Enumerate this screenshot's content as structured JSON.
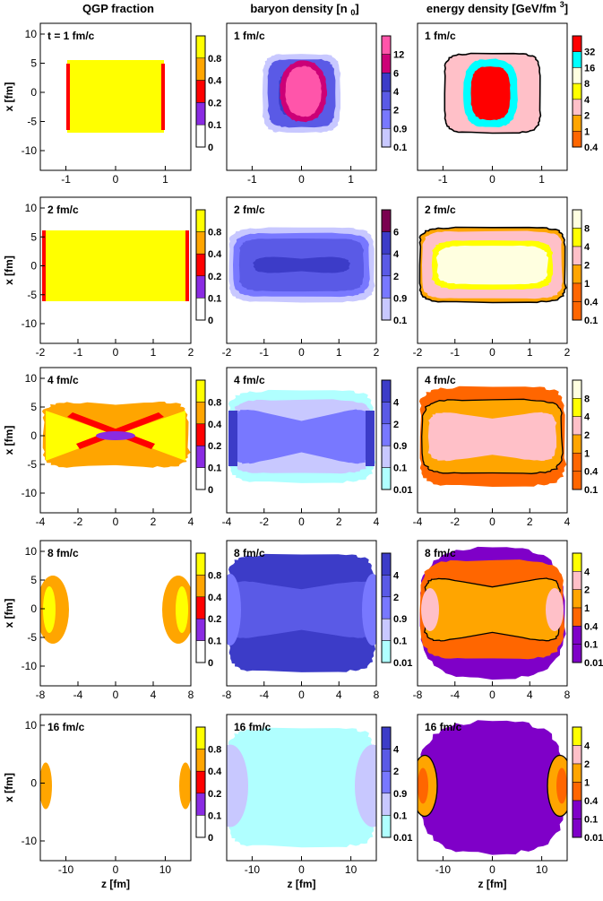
{
  "column_headers": [
    "QGP fraction",
    "baryon density [n0]",
    "energy density [GeV/fm3]"
  ],
  "column_header_sub": {
    "baryon": "0",
    "energy": "3"
  },
  "y_axis_label": "x [fm]",
  "x_axis_label": "z [fm]",
  "colors": {
    "qgp": [
      "#ffffff",
      "#8a2be2",
      "#ff0000",
      "#ffa500",
      "#ffff00"
    ],
    "baryon_warm": [
      "#c8c8ff",
      "#7878ff",
      "#3c3cc8",
      "#cc0077",
      "#ff55aa"
    ],
    "baryon_cold": [
      "#b0ffff",
      "#c8c8ff",
      "#7878ff",
      "#3c3cc8",
      "#3c3cc8"
    ],
    "energy": [
      "#7f00c8",
      "#ff6600",
      "#ffa500",
      "#ffc0c8",
      "#ffff00",
      "#ffffe0",
      "#00ffff",
      "#ff0000"
    ]
  },
  "chart_data": [
    {
      "type": "heatmap",
      "column": "QGP fraction",
      "rows": [
        {
          "time_label": "t = 1 fm/c",
          "xticks": [
            "-1",
            "0",
            "1"
          ],
          "yticks": [
            "10",
            "5",
            "0",
            "-5",
            "-10"
          ],
          "colorbar": [
            "0.8",
            "0.4",
            "0.2",
            "0.1",
            "0"
          ],
          "colors": [
            "#ffff00",
            "#ffa500",
            "#ff0000",
            "#8a2be2",
            "#ffffff"
          ]
        },
        {
          "time_label": "2 fm/c",
          "xticks": [
            "-2",
            "-1",
            "0",
            "1",
            "2"
          ],
          "yticks": [
            "10",
            "5",
            "0",
            "-5",
            "-10"
          ],
          "colorbar": [
            "0.8",
            "0.4",
            "0.2",
            "0.1",
            "0"
          ],
          "colors": [
            "#ffff00",
            "#ffa500",
            "#ff0000",
            "#8a2be2",
            "#ffffff"
          ]
        },
        {
          "time_label": "4 fm/c",
          "xticks": [
            "-4",
            "-2",
            "0",
            "2",
            "4"
          ],
          "yticks": [
            "10",
            "5",
            "0",
            "-5",
            "-10"
          ],
          "colorbar": [
            "0.8",
            "0.4",
            "0.2",
            "0.1",
            "0"
          ],
          "colors": [
            "#ffff00",
            "#ffa500",
            "#ff0000",
            "#8a2be2",
            "#ffffff"
          ]
        },
        {
          "time_label": "8 fm/c",
          "xticks": [
            "-8",
            "-4",
            "0",
            "4",
            "8"
          ],
          "yticks": [
            "10",
            "5",
            "0",
            "-5",
            "-10"
          ],
          "colorbar": [
            "0.8",
            "0.4",
            "0.2",
            "0.1",
            "0"
          ],
          "colors": [
            "#ffff00",
            "#ffa500",
            "#ff0000",
            "#8a2be2",
            "#ffffff"
          ]
        },
        {
          "time_label": "16 fm/c",
          "xticks": [
            "-10",
            "0",
            "10"
          ],
          "yticks": [
            "10",
            "0",
            "-10"
          ],
          "colorbar": [
            "0.8",
            "0.4",
            "0.2",
            "0.1",
            "0"
          ],
          "colors": [
            "#ffff00",
            "#ffa500",
            "#ff0000",
            "#8a2be2",
            "#ffffff"
          ]
        }
      ]
    },
    {
      "type": "heatmap",
      "column": "baryon density [n0]",
      "rows": [
        {
          "time_label": "1 fm/c",
          "xticks": [
            "-1",
            "0",
            "1"
          ],
          "colorbar": [
            "12",
            "6",
            "4",
            "2",
            "0.9",
            "0.1"
          ],
          "colors": [
            "#ff55aa",
            "#cc0077",
            "#3c3cc8",
            "#5a5ae6",
            "#7878ff",
            "#c8c8ff"
          ]
        },
        {
          "time_label": "2 fm/c",
          "xticks": [
            "-2",
            "-1",
            "0",
            "1",
            "2"
          ],
          "colorbar": [
            "6",
            "4",
            "2",
            "0.9",
            "0.1"
          ],
          "colors": [
            "#7a0050",
            "#3c3cc8",
            "#5a5ae6",
            "#7878ff",
            "#c8c8ff"
          ]
        },
        {
          "time_label": "4 fm/c",
          "xticks": [
            "-4",
            "-2",
            "0",
            "2",
            "4"
          ],
          "colorbar": [
            "4",
            "2",
            "0.9",
            "0.1",
            "0.01"
          ],
          "colors": [
            "#3c3cc8",
            "#5a5ae6",
            "#7878ff",
            "#c8c8ff",
            "#b0ffff"
          ]
        },
        {
          "time_label": "8 fm/c",
          "xticks": [
            "-8",
            "-4",
            "0",
            "4",
            "8"
          ],
          "colorbar": [
            "4",
            "2",
            "0.9",
            "0.1",
            "0.01"
          ],
          "colors": [
            "#3c3cc8",
            "#5a5ae6",
            "#7878ff",
            "#c8c8ff",
            "#b0ffff"
          ]
        },
        {
          "time_label": "16 fm/c",
          "xticks": [
            "-10",
            "0",
            "10"
          ],
          "colorbar": [
            "4",
            "2",
            "0.9",
            "0.1",
            "0.01"
          ],
          "colors": [
            "#3c3cc8",
            "#5a5ae6",
            "#7878ff",
            "#c8c8ff",
            "#b0ffff"
          ]
        }
      ]
    },
    {
      "type": "heatmap",
      "column": "energy density [GeV/fm3]",
      "rows": [
        {
          "time_label": "1 fm/c",
          "xticks": [
            "-1",
            "0",
            "1"
          ],
          "colorbar": [
            "32",
            "16",
            "8",
            "4",
            "2",
            "1",
            "0.4"
          ],
          "colors": [
            "#ff0000",
            "#00ffff",
            "#ffffe0",
            "#ffff00",
            "#ffc0c8",
            "#ffa500",
            "#ff6600"
          ]
        },
        {
          "time_label": "2 fm/c",
          "xticks": [
            "-2",
            "-1",
            "0",
            "1",
            "2"
          ],
          "colorbar": [
            "8",
            "4",
            "2",
            "1",
            "0.4",
            "0.1"
          ],
          "colors": [
            "#ffffe0",
            "#ffff00",
            "#ffc0c8",
            "#ffa500",
            "#ff6600",
            "#ff6600"
          ]
        },
        {
          "time_label": "4 fm/c",
          "xticks": [
            "-4",
            "-2",
            "0",
            "2",
            "4"
          ],
          "colorbar": [
            "8",
            "4",
            "2",
            "1",
            "0.4",
            "0.1"
          ],
          "colors": [
            "#ffffe0",
            "#ffff00",
            "#ffc0c8",
            "#ffa500",
            "#ff6600",
            "#ff6600"
          ]
        },
        {
          "time_label": "8 fm/c",
          "xticks": [
            "-8",
            "-4",
            "0",
            "4",
            "8"
          ],
          "colorbar": [
            "4",
            "2",
            "1",
            "0.4",
            "0.1",
            "0.01"
          ],
          "colors": [
            "#ffff00",
            "#ffc0c8",
            "#ffa500",
            "#ff6600",
            "#7f00c8",
            "#7f00c8"
          ]
        },
        {
          "time_label": "16 fm/c",
          "xticks": [
            "-10",
            "0",
            "10"
          ],
          "colorbar": [
            "4",
            "2",
            "1",
            "0.4",
            "0.1",
            "0.01"
          ],
          "colors": [
            "#ffff00",
            "#ffc0c8",
            "#ffa500",
            "#ff6600",
            "#7f00c8",
            "#7f00c8"
          ]
        }
      ]
    }
  ]
}
